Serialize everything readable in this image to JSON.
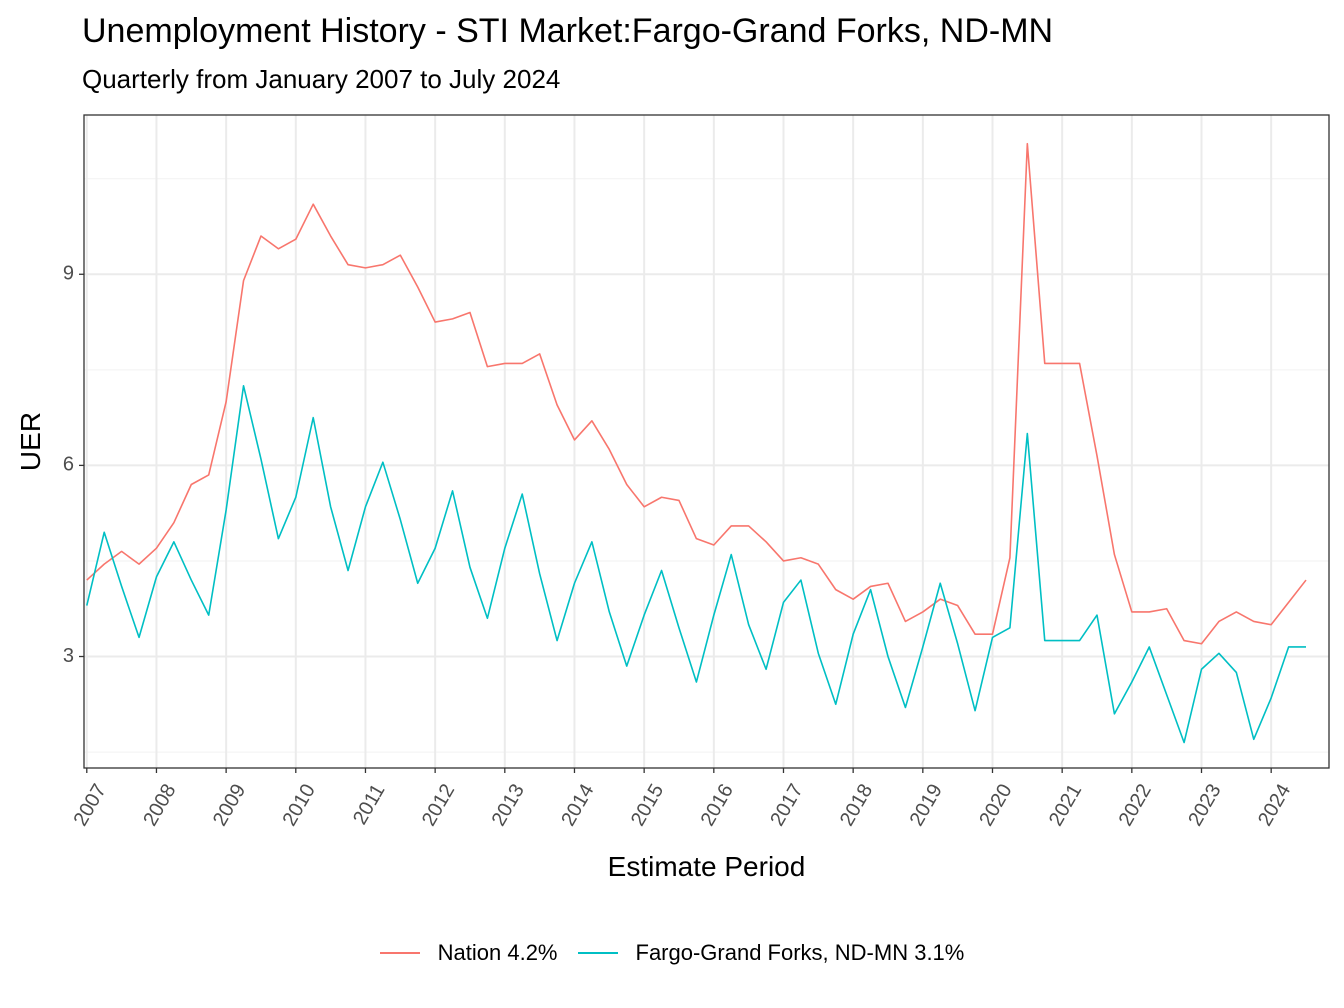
{
  "title": "Unemployment History - STI Market:Fargo-Grand Forks, ND-MN",
  "subtitle": "Quarterly from January 2007 to July 2024",
  "chart_data": {
    "type": "line",
    "xlabel": "Estimate Period",
    "ylabel": "UER",
    "x_ticks": [
      "2007",
      "2008",
      "2009",
      "2010",
      "2011",
      "2012",
      "2013",
      "2014",
      "2015",
      "2016",
      "2017",
      "2018",
      "2019",
      "2020",
      "2021",
      "2022",
      "2023",
      "2024"
    ],
    "y_ticks": [
      3,
      6,
      9
    ],
    "xlim": [
      2006.96,
      2024.83
    ],
    "ylim": [
      1.25,
      11.5
    ],
    "grid": true,
    "legend_position": "bottom",
    "x": [
      2007.0,
      2007.25,
      2007.5,
      2007.75,
      2008.0,
      2008.25,
      2008.5,
      2008.75,
      2009.0,
      2009.25,
      2009.5,
      2009.75,
      2010.0,
      2010.25,
      2010.5,
      2010.75,
      2011.0,
      2011.25,
      2011.5,
      2011.75,
      2012.0,
      2012.25,
      2012.5,
      2012.75,
      2013.0,
      2013.25,
      2013.5,
      2013.75,
      2014.0,
      2014.25,
      2014.5,
      2014.75,
      2015.0,
      2015.25,
      2015.5,
      2015.75,
      2016.0,
      2016.25,
      2016.5,
      2016.75,
      2017.0,
      2017.25,
      2017.5,
      2017.75,
      2018.0,
      2018.25,
      2018.5,
      2018.75,
      2019.0,
      2019.25,
      2019.5,
      2019.75,
      2020.0,
      2020.25,
      2020.5,
      2020.75,
      2021.0,
      2021.25,
      2021.5,
      2021.75,
      2022.0,
      2022.25,
      2022.5,
      2022.75,
      2023.0,
      2023.25,
      2023.5,
      2023.75,
      2024.0,
      2024.25,
      2024.5
    ],
    "series": [
      {
        "name": "Nation",
        "legend_label": "Nation 4.2%",
        "color": "#F8766D",
        "values": [
          4.2,
          4.45,
          4.65,
          4.45,
          4.7,
          5.1,
          5.7,
          5.85,
          7.0,
          8.9,
          9.6,
          9.4,
          9.55,
          10.1,
          9.6,
          9.15,
          9.1,
          9.15,
          9.3,
          8.8,
          8.25,
          8.3,
          8.4,
          7.55,
          7.6,
          7.6,
          7.75,
          6.95,
          6.4,
          6.7,
          6.25,
          5.7,
          5.35,
          5.5,
          5.45,
          4.85,
          4.75,
          5.05,
          5.05,
          4.8,
          4.5,
          4.55,
          4.45,
          4.05,
          3.9,
          4.1,
          4.15,
          3.55,
          3.7,
          3.9,
          3.8,
          3.35,
          3.35,
          4.55,
          11.05,
          7.6,
          7.6,
          7.6,
          6.15,
          4.6,
          3.7,
          3.7,
          3.75,
          3.25,
          3.2,
          3.55,
          3.7,
          3.55,
          3.5,
          3.85,
          4.2
        ]
      },
      {
        "name": "Fargo-Grand Forks, ND-MN",
        "legend_label": "Fargo-Grand Forks, ND-MN 3.1%",
        "color": "#00BFC4",
        "values": [
          3.8,
          4.95,
          4.1,
          3.3,
          4.25,
          4.8,
          4.2,
          3.65,
          5.3,
          7.25,
          6.1,
          4.85,
          5.5,
          6.75,
          5.35,
          4.35,
          5.35,
          6.05,
          5.15,
          4.15,
          4.7,
          5.6,
          4.4,
          3.6,
          4.7,
          5.55,
          4.3,
          3.25,
          4.15,
          4.8,
          3.7,
          2.85,
          3.65,
          4.35,
          3.45,
          2.6,
          3.65,
          4.6,
          3.5,
          2.8,
          3.85,
          4.2,
          3.05,
          2.25,
          3.35,
          4.05,
          3.0,
          2.2,
          3.15,
          4.15,
          3.2,
          2.15,
          3.3,
          3.45,
          6.5,
          3.25,
          3.25,
          3.25,
          3.65,
          2.1,
          2.6,
          3.15,
          2.4,
          1.65,
          2.8,
          3.05,
          2.75,
          1.7,
          2.35,
          3.15,
          3.15
        ]
      }
    ]
  }
}
